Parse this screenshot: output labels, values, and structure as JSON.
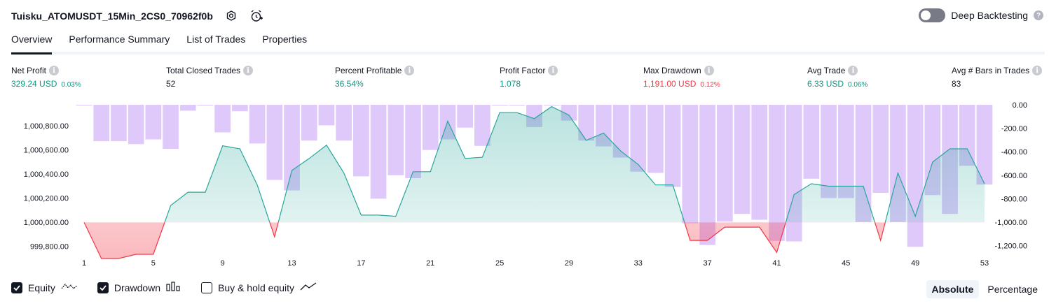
{
  "header": {
    "strategy_name": "Tuisku_ATOMUSDT_15Min_2CS0_70962f0b",
    "icons": [
      "settings-icon",
      "alarm-add-icon"
    ],
    "deep_backtesting_label": "Deep Backtesting",
    "deep_backtesting_enabled": false
  },
  "tabs": [
    {
      "label": "Overview",
      "active": true
    },
    {
      "label": "Performance Summary",
      "active": false
    },
    {
      "label": "List of Trades",
      "active": false
    },
    {
      "label": "Properties",
      "active": false
    }
  ],
  "metrics": [
    {
      "label": "Net Profit",
      "value": "329.24 USD",
      "pct": "0.03%",
      "color": "#089981"
    },
    {
      "label": "Total Closed Trades",
      "value": "52",
      "pct": "",
      "color": "#131722"
    },
    {
      "label": "Percent Profitable",
      "value": "36.54%",
      "pct": "",
      "color": "#089981"
    },
    {
      "label": "Profit Factor",
      "value": "1.078",
      "pct": "",
      "color": "#089981"
    },
    {
      "label": "Max Drawdown",
      "value": "1,191.00 USD",
      "pct": "0.12%",
      "color": "#f23645"
    },
    {
      "label": "Avg Trade",
      "value": "6.33 USD",
      "pct": "0.06%",
      "color": "#089981"
    },
    {
      "label": "Avg # Bars in Trades",
      "value": "83",
      "pct": "",
      "color": "#131722"
    }
  ],
  "chart_data": {
    "type": "line",
    "x": [
      1,
      2,
      3,
      4,
      5,
      6,
      7,
      8,
      9,
      10,
      11,
      12,
      13,
      14,
      15,
      16,
      17,
      18,
      19,
      20,
      21,
      22,
      23,
      24,
      25,
      26,
      27,
      28,
      29,
      30,
      31,
      32,
      33,
      34,
      35,
      36,
      37,
      38,
      39,
      40,
      41,
      42,
      43,
      44,
      45,
      46,
      47,
      48,
      49,
      50,
      51,
      52,
      53
    ],
    "x_tick_labels": [
      "1",
      "5",
      "9",
      "13",
      "17",
      "21",
      "25",
      "29",
      "33",
      "37",
      "41",
      "45",
      "49",
      "53"
    ],
    "left_tick_labels": [
      "999,800.00",
      "1,000,000.00",
      "1,000,200.00",
      "1,000,400.00",
      "1,000,600.00",
      "1,000,800.00"
    ],
    "right_tick_labels": [
      "0.00",
      "-200.00",
      "-400.00",
      "-600.00",
      "-800.00",
      "-1,000.00",
      "-1,200.00"
    ],
    "baseline": 1000000,
    "ylim_left": [
      999700,
      1000975
    ],
    "ylim_right": [
      -1310,
      0
    ],
    "series": [
      {
        "key": "equity",
        "axis": "left",
        "values": [
          1000000,
          999700,
          999700,
          999735,
          999735,
          1000140,
          1000250,
          1000250,
          1000635,
          1000610,
          1000310,
          999880,
          1000430,
          1000530,
          1000640,
          1000410,
          1000060,
          1000060,
          1000050,
          1000420,
          1000420,
          1000840,
          1000530,
          1000540,
          1000910,
          1000910,
          1000860,
          1000960,
          1000890,
          1000680,
          1000740,
          1000590,
          1000480,
          1000310,
          1000310,
          999850,
          999850,
          999960,
          999960,
          999960,
          999750,
          1000230,
          1000320,
          1000300,
          1000300,
          1000300,
          999850,
          1000410,
          1000050,
          1000500,
          1000610,
          1000610,
          1000320
        ]
      },
      {
        "key": "drawdown",
        "axis": "right",
        "values": [
          -5,
          -310,
          -310,
          -335,
          -295,
          -375,
          -50,
          0,
          -235,
          -55,
          -330,
          -640,
          -730,
          -305,
          -175,
          -305,
          -610,
          -800,
          -600,
          -625,
          -385,
          -295,
          -195,
          -350,
          0,
          0,
          -190,
          0,
          -135,
          -305,
          -355,
          -450,
          -570,
          -580,
          -700,
          -1010,
          -1195,
          -995,
          -930,
          -980,
          -1160,
          -1165,
          -630,
          -795,
          -795,
          -1000,
          -750,
          -1000,
          -1210,
          -770,
          -930,
          -520,
          -680
        ]
      }
    ],
    "colors": {
      "equity_line": "#26a69a",
      "equity_negative": "#f23645",
      "drawdown_bar": "#d1b2f8"
    }
  },
  "legend": [
    {
      "label": "Equity",
      "checked": true,
      "icon": "equity-line-icon"
    },
    {
      "label": "Drawdown",
      "checked": true,
      "icon": "drawdown-bars-icon"
    },
    {
      "label": "Buy & hold equity",
      "checked": false,
      "icon": "buy-hold-line-icon"
    }
  ],
  "view_mode": {
    "options": [
      "Absolute",
      "Percentage"
    ],
    "selected": "Absolute"
  }
}
